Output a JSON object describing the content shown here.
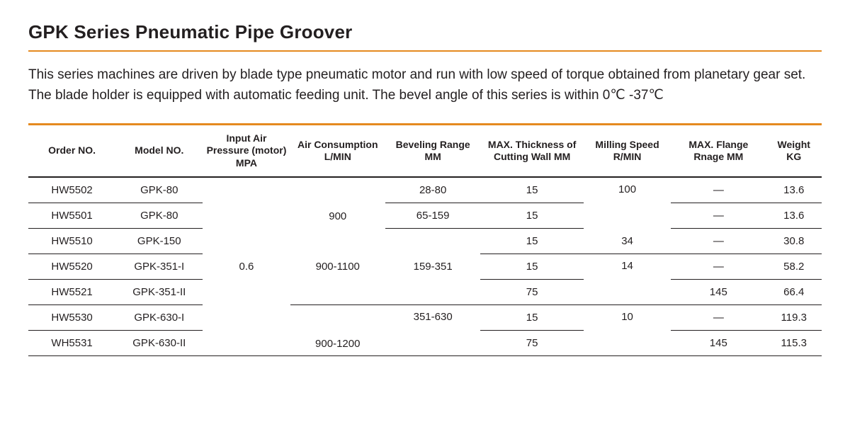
{
  "title": "GPK Series Pneumatic Pipe Groover",
  "description_line1": "This series machines are driven by blade type pneumatic motor and run with low speed of torque obtained from planetary gear set.",
  "description_line2": "The blade holder is equipped with automatic  feeding unit. The bevel angle of this series is within 0℃ -37℃",
  "colors": {
    "accent": "#e58a1f",
    "text": "#231f20",
    "background": "#ffffff"
  },
  "table": {
    "headers": {
      "order": "Order NO.",
      "model": "Model NO.",
      "pressure": "Input Air Pressure (motor) MPA",
      "air": "Air Consumption L/MIN",
      "bevel": "Beveling Range MM",
      "thick": "MAX. Thickness of Cutting Wall MM",
      "speed": "Milling Speed R/MIN",
      "flange": "MAX. Flange Rnage MM",
      "weight": "Weight KG"
    },
    "shared": {
      "pressure": "0.6",
      "air_consumption_group1": "900",
      "air_consumption_group2": "900-1100",
      "air_consumption_group3": "900-1200",
      "bevel_range_group2": "159-351",
      "bevel_range_group3": "351-630",
      "milling_speed_row1_2": "100",
      "milling_speed_row3": "34",
      "milling_speed_row4_5": "14",
      "milling_speed_row6_7": "10"
    },
    "rows": [
      {
        "order": "HW5502",
        "model": "GPK-80",
        "bevel": "28-80",
        "thick": "15",
        "flange": "—",
        "weight": "13.6"
      },
      {
        "order": "HW5501",
        "model": "GPK-80",
        "bevel": "65-159",
        "thick": "15",
        "flange": "—",
        "weight": "13.6"
      },
      {
        "order": "HW5510",
        "model": "GPK-150",
        "bevel": "",
        "thick": "15",
        "flange": "—",
        "weight": "30.8"
      },
      {
        "order": "HW5520",
        "model": "GPK-351-I",
        "bevel": "",
        "thick": "15",
        "flange": "—",
        "weight": "58.2"
      },
      {
        "order": "HW5521",
        "model": "GPK-351-II",
        "bevel": "",
        "thick": "75",
        "flange": "145",
        "weight": "66.4"
      },
      {
        "order": "HW5530",
        "model": "GPK-630-I",
        "bevel": "",
        "thick": "15",
        "flange": "—",
        "weight": "119.3"
      },
      {
        "order": "WH5531",
        "model": "GPK-630-II",
        "bevel": "",
        "thick": "75",
        "flange": "145",
        "weight": "115.3"
      }
    ]
  }
}
